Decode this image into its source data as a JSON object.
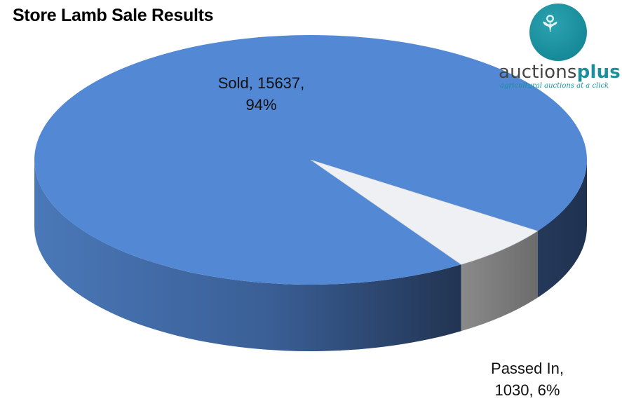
{
  "title": "Store Lamb Sale Results",
  "logo": {
    "brand_regular": "auctions",
    "brand_bold": "plus",
    "tagline": "agricultural auctions at a click"
  },
  "colors": {
    "sold_top": "#5288d4",
    "sold_side_dark": "#223452",
    "sold_side_light": "#4f7fc0",
    "passed_top": "#eef0f3",
    "passed_side": "#7b7b7b",
    "logo_teal": "#1d8f9c"
  },
  "chart_data": {
    "type": "pie",
    "title": "Store Lamb Sale Results",
    "three_d": true,
    "slices": [
      {
        "name": "Sold",
        "value": 15637,
        "percent": 94,
        "label_line1": "Sold, 15637,",
        "label_line2": "94%"
      },
      {
        "name": "Passed In",
        "value": 1030,
        "percent": 6,
        "label_line1": "Passed In,",
        "label_line2": "1030, 6%"
      }
    ]
  }
}
